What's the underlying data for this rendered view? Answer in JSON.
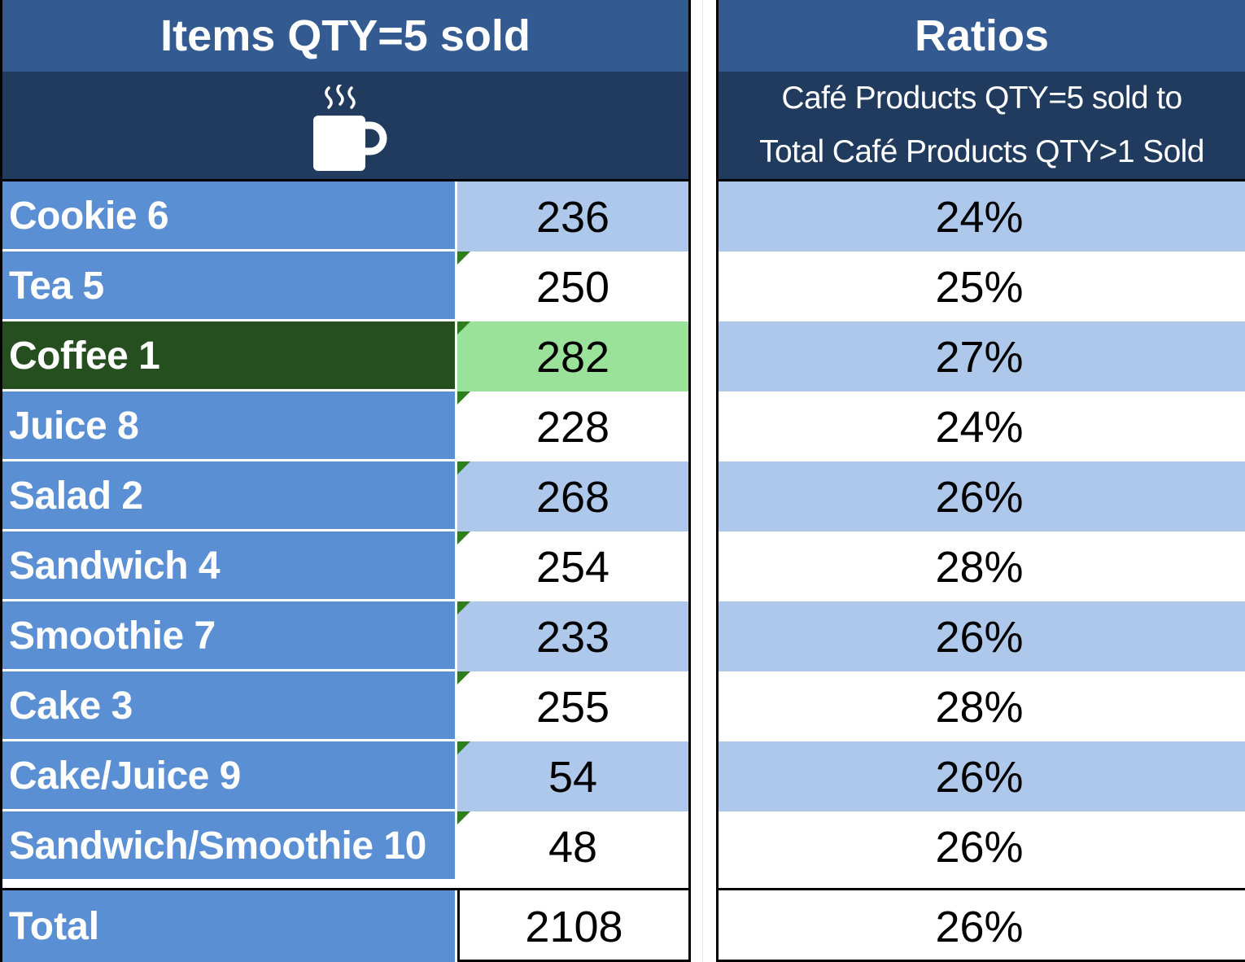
{
  "left_table": {
    "title": "Items QTY=5 sold",
    "header_icon": "coffee-cup-icon",
    "rows": [
      {
        "label": "Cookie 6",
        "value": "236",
        "style": "band",
        "marker": false
      },
      {
        "label": "Tea 5",
        "value": "250",
        "style": "plain",
        "marker": true
      },
      {
        "label": "Coffee 1",
        "value": "282",
        "style": "highlight",
        "marker": true
      },
      {
        "label": "Juice 8",
        "value": "228",
        "style": "plain",
        "marker": true
      },
      {
        "label": "Salad 2",
        "value": "268",
        "style": "band",
        "marker": true
      },
      {
        "label": "Sandwich 4",
        "value": "254",
        "style": "plain",
        "marker": true
      },
      {
        "label": "Smoothie 7",
        "value": "233",
        "style": "band",
        "marker": true
      },
      {
        "label": "Cake 3",
        "value": "255",
        "style": "plain",
        "marker": true
      },
      {
        "label": "Cake/Juice 9",
        "value": "54",
        "style": "band",
        "marker": true
      },
      {
        "label": "Sandwich/Smoothie 10",
        "value": "48",
        "style": "plain",
        "marker": true
      }
    ],
    "total": {
      "label": "Total",
      "value": "2108"
    }
  },
  "right_table": {
    "title": "Ratios",
    "subtitle_line1": "Café Products QTY=5 sold to",
    "subtitle_line2": "Total Café Products QTY>1 Sold",
    "rows": [
      {
        "value": "24%",
        "style": "band"
      },
      {
        "value": "25%",
        "style": "plain"
      },
      {
        "value": "27%",
        "style": "band"
      },
      {
        "value": "24%",
        "style": "plain"
      },
      {
        "value": "26%",
        "style": "band"
      },
      {
        "value": "28%",
        "style": "plain"
      },
      {
        "value": "26%",
        "style": "band"
      },
      {
        "value": "28%",
        "style": "plain"
      },
      {
        "value": "26%",
        "style": "band"
      },
      {
        "value": "26%",
        "style": "plain"
      }
    ],
    "total": {
      "value": "26%"
    }
  },
  "colors": {
    "title_bg": "#335b92",
    "subheader_bg": "#213b5f",
    "label_bg": "#5b8fd4",
    "highlight_label_bg": "#264f20",
    "highlight_value_bg": "#9ae19a",
    "band_bg": "#adc8ea",
    "marker": "#2f7d1f"
  }
}
